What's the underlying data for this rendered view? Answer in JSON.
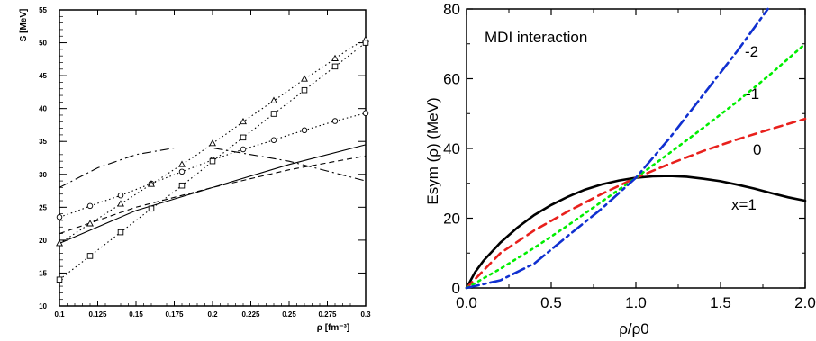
{
  "chart_data": [
    {
      "type": "line",
      "title": "",
      "ylabel": "S [MeV]",
      "xlabel": "ρ [fm⁻³]",
      "xlim": [
        0.1,
        0.3
      ],
      "ylim": [
        10,
        55
      ],
      "x_ticks": [
        "0.1",
        "0.125",
        "0.15",
        "0.175",
        "0.2",
        "0.225",
        "0.25",
        "0.275",
        "0.3"
      ],
      "y_ticks": [
        "10",
        "15",
        "20",
        "25",
        "30",
        "35",
        "40",
        "45",
        "50",
        "55"
      ],
      "series": [
        {
          "style": "solid",
          "x": [
            0.1,
            0.15,
            0.2,
            0.25,
            0.3
          ],
          "y": [
            19.5,
            24.5,
            28.0,
            31.5,
            34.5
          ]
        },
        {
          "style": "dashed",
          "x": [
            0.1,
            0.15,
            0.2,
            0.25,
            0.3
          ],
          "y": [
            21.0,
            25.0,
            28.0,
            30.7,
            32.8
          ]
        },
        {
          "style": "dash-dot",
          "x": [
            0.1,
            0.125,
            0.15,
            0.175,
            0.2,
            0.225,
            0.25,
            0.275,
            0.3
          ],
          "y": [
            28.0,
            31.0,
            33.0,
            34.0,
            34.0,
            33.0,
            32.0,
            30.5,
            29.0
          ]
        },
        {
          "style": "dotted",
          "marker": "circle",
          "x": [
            0.1,
            0.11,
            0.12,
            0.13,
            0.14,
            0.15,
            0.16,
            0.17,
            0.18,
            0.19,
            0.2,
            0.21,
            0.22,
            0.23,
            0.24,
            0.25,
            0.26,
            0.27,
            0.28,
            0.29,
            0.3
          ],
          "y": [
            23.5,
            24.3,
            25.2,
            26.0,
            26.8,
            27.7,
            28.6,
            29.5,
            30.4,
            31.3,
            32.2,
            33.0,
            33.8,
            34.5,
            35.2,
            36.0,
            36.7,
            37.4,
            38.1,
            38.7,
            39.3
          ]
        },
        {
          "style": "dotted",
          "marker": "triangle",
          "x": [
            0.1,
            0.11,
            0.12,
            0.13,
            0.14,
            0.15,
            0.16,
            0.17,
            0.18,
            0.19,
            0.2,
            0.21,
            0.22,
            0.23,
            0.24,
            0.25,
            0.26,
            0.27,
            0.28,
            0.29,
            0.3
          ],
          "y": [
            19.5,
            21.0,
            22.5,
            24.0,
            25.5,
            27.0,
            28.5,
            30.0,
            31.5,
            33.0,
            34.7,
            36.3,
            38.0,
            39.6,
            41.2,
            42.8,
            44.5,
            46.0,
            47.6,
            49.2,
            50.5
          ]
        },
        {
          "style": "dotted",
          "marker": "square",
          "x": [
            0.1,
            0.11,
            0.12,
            0.13,
            0.14,
            0.15,
            0.16,
            0.17,
            0.18,
            0.19,
            0.2,
            0.21,
            0.22,
            0.23,
            0.24,
            0.25,
            0.26,
            0.27,
            0.28,
            0.29,
            0.3
          ],
          "y": [
            14.0,
            15.8,
            17.6,
            19.4,
            21.2,
            23.0,
            24.8,
            26.5,
            28.3,
            30.1,
            32.0,
            33.8,
            35.6,
            37.4,
            39.2,
            41.0,
            42.8,
            44.6,
            46.4,
            48.2,
            50.0
          ]
        }
      ]
    },
    {
      "type": "line",
      "title": "",
      "annotation": "MDI interaction",
      "xlabel": "ρ/ρ0",
      "ylabel": "Esym (ρ) (MeV)",
      "xlim": [
        0,
        2
      ],
      "ylim": [
        0,
        80
      ],
      "x_ticks": [
        "0.0",
        "0.5",
        "1.0",
        "1.5",
        "2.0"
      ],
      "y_ticks": [
        "0",
        "20",
        "40",
        "60",
        "80"
      ],
      "series": [
        {
          "name": "x=1",
          "color": "#000000",
          "style": "solid",
          "x": [
            0,
            0.05,
            0.1,
            0.2,
            0.3,
            0.4,
            0.5,
            0.6,
            0.7,
            0.8,
            0.9,
            1.0,
            1.1,
            1.2,
            1.3,
            1.4,
            1.5,
            1.6,
            1.7,
            1.8,
            1.9,
            2.0
          ],
          "y": [
            0,
            4.5,
            7.8,
            13.0,
            17.3,
            20.9,
            23.8,
            26.2,
            28.2,
            29.7,
            30.8,
            31.6,
            32.0,
            32.1,
            31.9,
            31.3,
            30.6,
            29.6,
            28.5,
            27.2,
            26.0,
            25.0
          ]
        },
        {
          "name": "0",
          "color": "#e8201c",
          "style": "dashed",
          "x": [
            0,
            0.2,
            0.4,
            0.6,
            0.8,
            1.0,
            1.2,
            1.4,
            1.6,
            1.8,
            2.0
          ],
          "y": [
            0,
            10.0,
            16.5,
            22.0,
            27.0,
            31.6,
            35.6,
            39.3,
            42.6,
            45.6,
            48.5
          ]
        },
        {
          "name": "-1",
          "color": "#00ee00",
          "style": "dotted",
          "x": [
            0,
            0.2,
            0.4,
            0.6,
            0.8,
            1.0,
            1.2,
            1.4,
            1.6,
            1.8,
            2.0
          ],
          "y": [
            0,
            5.5,
            11.5,
            18.0,
            24.8,
            31.6,
            38.7,
            46.0,
            53.5,
            61.5,
            70.0
          ]
        },
        {
          "name": "-2",
          "color": "#1030d0",
          "style": "dash-dot",
          "x": [
            0,
            0.2,
            0.4,
            0.6,
            0.8,
            1.0,
            1.2,
            1.4,
            1.6,
            1.78
          ],
          "y": [
            0,
            2.2,
            7.0,
            15.0,
            22.8,
            31.6,
            43.0,
            55.5,
            68.0,
            80.0
          ]
        }
      ]
    }
  ]
}
